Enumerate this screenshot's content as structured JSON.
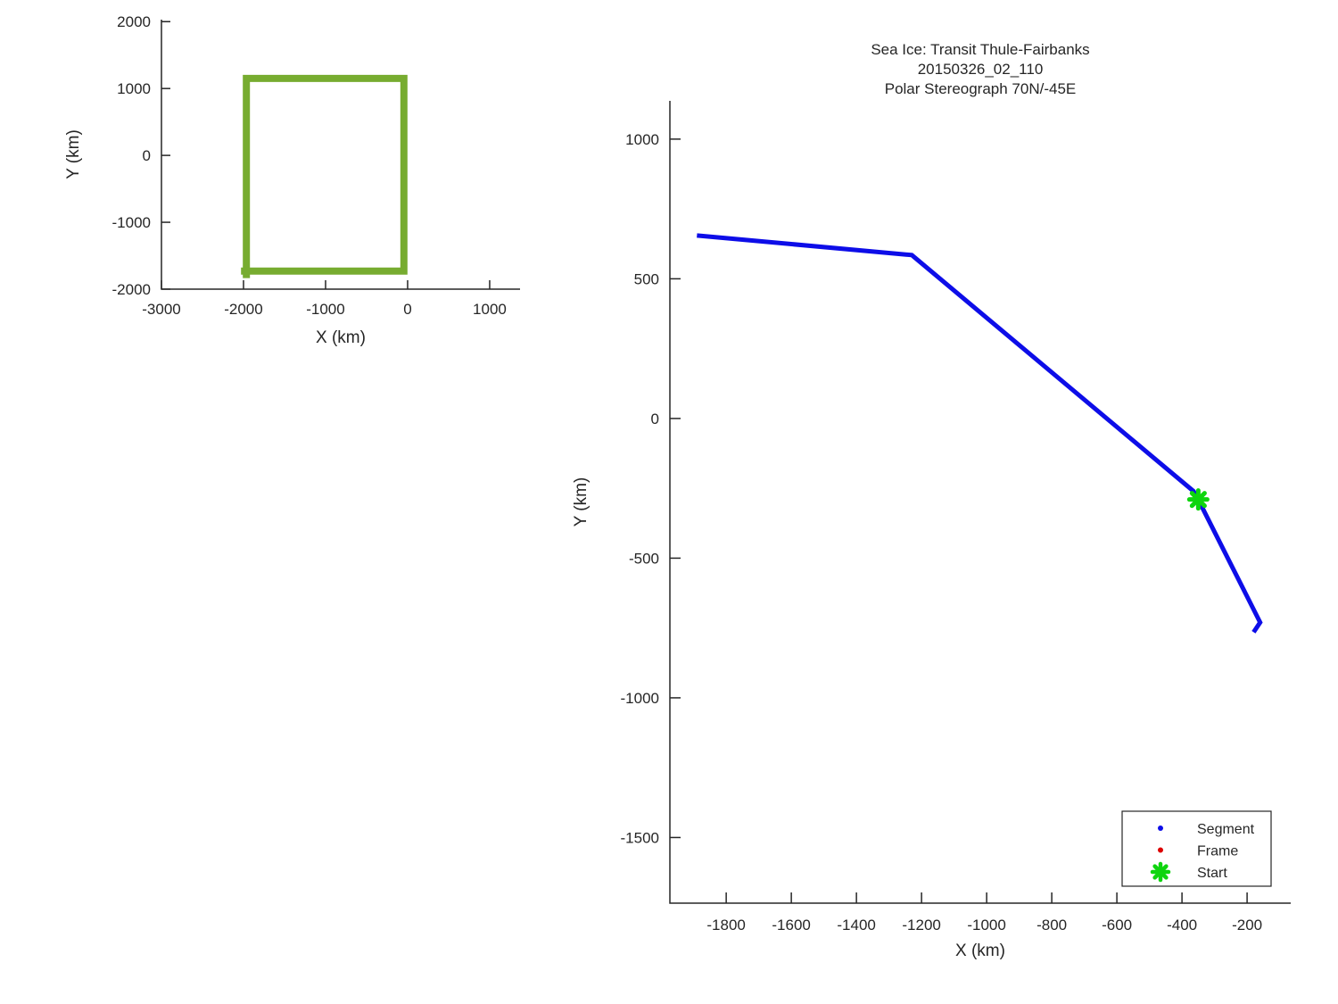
{
  "figure": {
    "background": "#ffffff",
    "text_color": "#262626"
  },
  "chart_data": [
    {
      "id": "overview",
      "type": "line",
      "title_lines": [],
      "xlabel": "X (km)",
      "ylabel": "Y (km)",
      "xlim": [
        -3000,
        1370
      ],
      "ylim": [
        -2000,
        2030
      ],
      "xticks": [
        -3000,
        -2000,
        -1000,
        0,
        1000
      ],
      "yticks": [
        2000,
        1000,
        0,
        -1000,
        -2000
      ],
      "grid": false,
      "legend": null,
      "series": [
        {
          "name": "coverage-box",
          "color": "#77AC30",
          "line_width": 8,
          "points": [
            [
              -1965,
              -1835
            ],
            [
              -1965,
              1150
            ],
            [
              -45,
              1150
            ],
            [
              -45,
              -1730
            ],
            [
              -2030,
              -1730
            ]
          ]
        }
      ],
      "markers": []
    },
    {
      "id": "transit",
      "type": "line",
      "title_lines": [
        "Sea Ice: Transit Thule-Fairbanks",
        "20150326_02_110",
        "Polar Stereograph 70N/-45E"
      ],
      "xlabel": "X (km)",
      "ylabel": "Y (km)",
      "xlim": [
        -1973,
        -66
      ],
      "ylim": [
        -1735,
        1137
      ],
      "xticks": [
        -1800,
        -1600,
        -1400,
        -1200,
        -1000,
        -800,
        -600,
        -400,
        -200
      ],
      "yticks": [
        1000,
        500,
        0,
        -500,
        -1000,
        -1500
      ],
      "grid": false,
      "legend": {
        "position": "southeast",
        "items": [
          {
            "label": "Segment",
            "marker": "dot",
            "color": "#0D0DE8"
          },
          {
            "label": "Frame",
            "marker": "dot",
            "color": "#DD0000"
          },
          {
            "label": "Start",
            "marker": "asterisk",
            "color": "#0ED50E"
          }
        ]
      },
      "series": [
        {
          "name": "Segment",
          "color": "#0D0DE8",
          "line_width": 5,
          "points": [
            [
              -1890,
              655
            ],
            [
              -1230,
              585
            ],
            [
              -365,
              -260
            ],
            [
              -350,
              -290
            ],
            [
              -160,
              -730
            ],
            [
              -180,
              -765
            ]
          ]
        }
      ],
      "markers": [
        {
          "name": "Start",
          "shape": "asterisk",
          "color": "#0ED50E",
          "x": -350,
          "y": -290,
          "size": 10,
          "stroke_width": 5
        }
      ]
    }
  ]
}
